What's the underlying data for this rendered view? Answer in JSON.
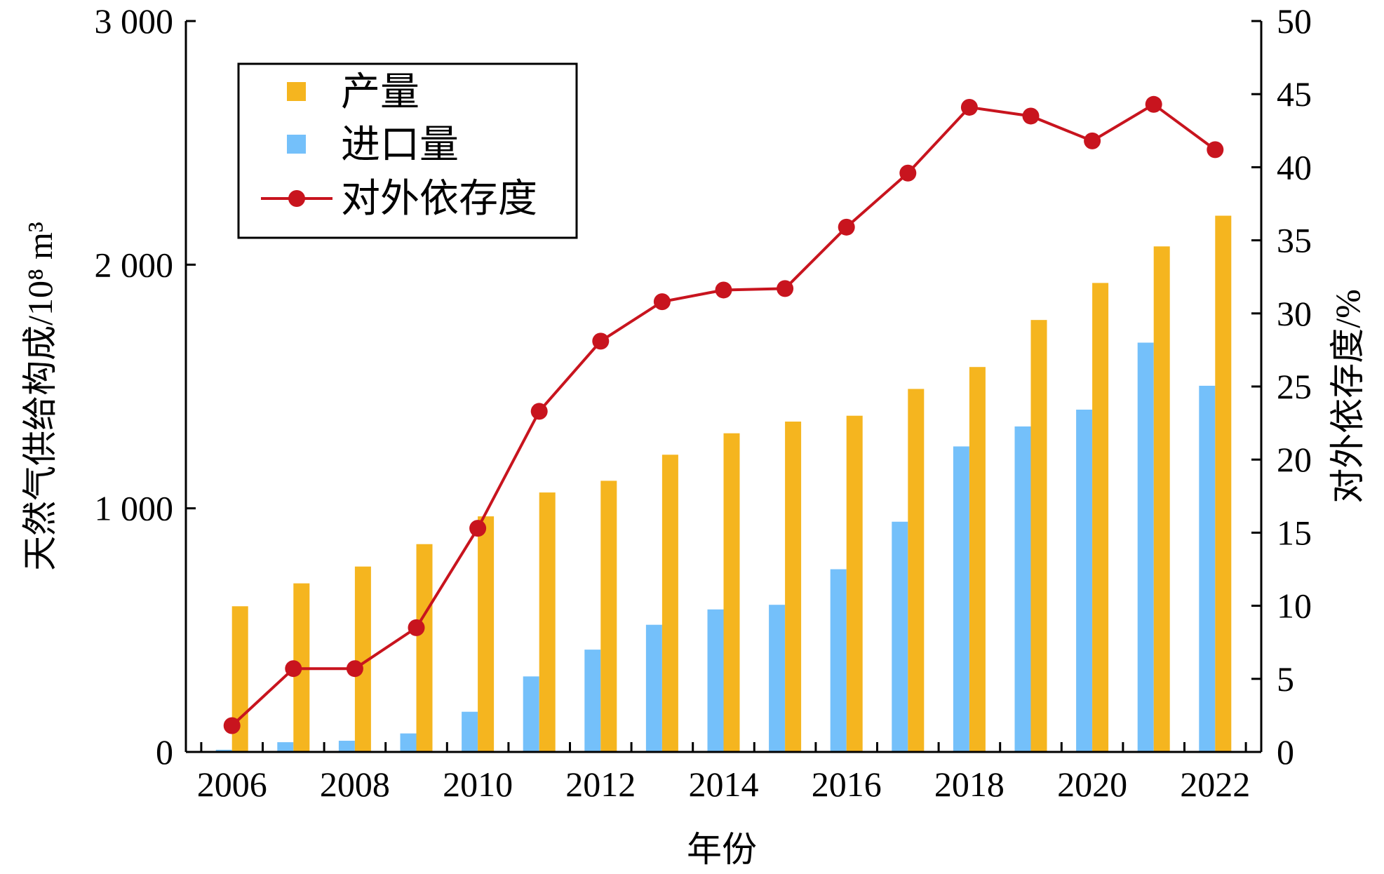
{
  "chart_data": {
    "type": "bar",
    "xlabel": "年份",
    "ylabel_left": "天然气供给构成/10⁸ m³",
    "ylabel_right": "对外依存度/%",
    "categories": [
      "2006",
      "2007",
      "2008",
      "2009",
      "2010",
      "2011",
      "2012",
      "2013",
      "2014",
      "2015",
      "2016",
      "2017",
      "2018",
      "2019",
      "2020",
      "2021",
      "2022"
    ],
    "x_tick_labels": [
      "2006",
      "2008",
      "2010",
      "2012",
      "2014",
      "2016",
      "2018",
      "2020",
      "2022"
    ],
    "ylim_left": [
      0,
      3000
    ],
    "ylim_right": [
      0,
      50
    ],
    "y_left_ticks": [
      {
        "value": 0,
        "label": "0"
      },
      {
        "value": 1000,
        "label": "1 000"
      },
      {
        "value": 2000,
        "label": "2 000"
      },
      {
        "value": 3000,
        "label": "3 000"
      }
    ],
    "y_right_ticks": [
      {
        "value": 0,
        "label": "0"
      },
      {
        "value": 5,
        "label": "5"
      },
      {
        "value": 10,
        "label": "10"
      },
      {
        "value": 15,
        "label": "15"
      },
      {
        "value": 20,
        "label": "20"
      },
      {
        "value": 25,
        "label": "25"
      },
      {
        "value": 30,
        "label": "30"
      },
      {
        "value": 35,
        "label": "35"
      },
      {
        "value": 40,
        "label": "40"
      },
      {
        "value": 45,
        "label": "45"
      },
      {
        "value": 50,
        "label": "50"
      }
    ],
    "series": [
      {
        "name": "进口量",
        "kind": "bar",
        "axis": "left",
        "color": "#74c0fa",
        "values": [
          9,
          40,
          46,
          76,
          165,
          310,
          420,
          522,
          585,
          604,
          750,
          945,
          1254,
          1336,
          1405,
          1680,
          1503
        ]
      },
      {
        "name": "产量",
        "kind": "bar",
        "axis": "left",
        "color": "#f5b51f",
        "values": [
          598,
          692,
          761,
          853,
          967,
          1065,
          1113,
          1220,
          1308,
          1356,
          1380,
          1490,
          1580,
          1773,
          1925,
          2075,
          2201
        ]
      },
      {
        "name": "对外依存度",
        "kind": "line",
        "axis": "right",
        "color": "#c8141e",
        "values": [
          1.8,
          5.7,
          5.7,
          8.5,
          15.3,
          23.3,
          28.1,
          30.8,
          31.6,
          31.7,
          35.9,
          39.6,
          44.1,
          43.5,
          41.8,
          44.3,
          41.2
        ]
      }
    ],
    "legend": {
      "position": "top-left",
      "items": [
        "产量",
        "进口量",
        "对外依存度"
      ]
    },
    "grid": false
  }
}
